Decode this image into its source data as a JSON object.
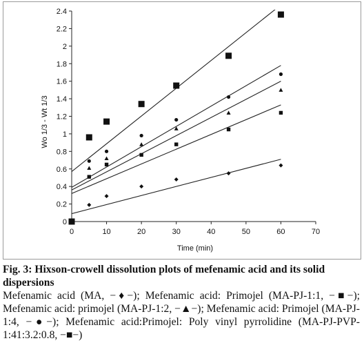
{
  "chart_data": {
    "type": "scatter",
    "xlabel": "Time (min)",
    "ylabel": "Wo 1/3 - Wt 1/3",
    "xlim": [
      0,
      70
    ],
    "ylim": [
      0,
      2.4
    ],
    "x_ticks": [
      "0",
      "10",
      "20",
      "30",
      "40",
      "50",
      "60",
      "70"
    ],
    "y_ticks": [
      "0",
      "0.2",
      "0.4",
      "0.6",
      "0.8",
      "1",
      "1.2",
      "1.4",
      "1.6",
      "1.8",
      "2",
      "2.2",
      "2.4"
    ],
    "grid": false,
    "series": [
      {
        "marker": "diamond",
        "marker_size": "small",
        "points": [
          [
            0,
            0
          ],
          [
            5,
            0.19
          ],
          [
            10,
            0.29
          ],
          [
            20,
            0.4
          ],
          [
            30,
            0.48
          ],
          [
            45,
            0.55
          ],
          [
            60,
            0.64
          ]
        ],
        "fit": [
          [
            0,
            0.09
          ],
          [
            60,
            0.71
          ]
        ]
      },
      {
        "marker": "square",
        "marker_size": "small",
        "points": [
          [
            0,
            0
          ],
          [
            5,
            0.51
          ],
          [
            10,
            0.65
          ],
          [
            20,
            0.76
          ],
          [
            30,
            0.88
          ],
          [
            45,
            1.05
          ],
          [
            60,
            1.24
          ]
        ],
        "fit": [
          [
            0,
            0.32
          ],
          [
            60,
            1.33
          ]
        ]
      },
      {
        "marker": "triangle",
        "marker_size": "small",
        "points": [
          [
            0,
            0
          ],
          [
            5,
            0.61
          ],
          [
            10,
            0.72
          ],
          [
            20,
            0.88
          ],
          [
            30,
            1.06
          ],
          [
            45,
            1.24
          ],
          [
            60,
            1.5
          ]
        ],
        "fit": [
          [
            0,
            0.36
          ],
          [
            60,
            1.6
          ]
        ]
      },
      {
        "marker": "circle",
        "marker_size": "small",
        "points": [
          [
            0,
            0
          ],
          [
            5,
            0.69
          ],
          [
            10,
            0.8
          ],
          [
            20,
            0.98
          ],
          [
            30,
            1.16
          ],
          [
            45,
            1.42
          ],
          [
            60,
            1.68
          ]
        ],
        "fit": [
          [
            0,
            0.39
          ],
          [
            60,
            1.78
          ]
        ]
      },
      {
        "marker": "square",
        "marker_size": "large",
        "points": [
          [
            0,
            0
          ],
          [
            5,
            0.96
          ],
          [
            10,
            1.14
          ],
          [
            20,
            1.34
          ],
          [
            30,
            1.55
          ],
          [
            45,
            1.89
          ],
          [
            60,
            2.36
          ]
        ],
        "fit": [
          [
            0,
            0.57
          ],
          [
            60,
            2.47
          ]
        ]
      }
    ]
  },
  "caption": {
    "title": "Fig. 3: Hixson-crowell dissolution plots of mefenamic acid and its solid dispersions",
    "body": "Mefenamic acid (MA, −♦−); Mefenamic acid: Primojel (MA-PJ-1:1, −■−); Mefenamic acid: primojel (MA-PJ-1:2, −▲−); Mefenamic acid: Primojel (MA-PJ-1:4, −●−); Mefenamic acid:Primojel: Poly vinyl pyrrolidine (MA-PJ-PVP-1:41:3.2:0.8, −■−)"
  }
}
